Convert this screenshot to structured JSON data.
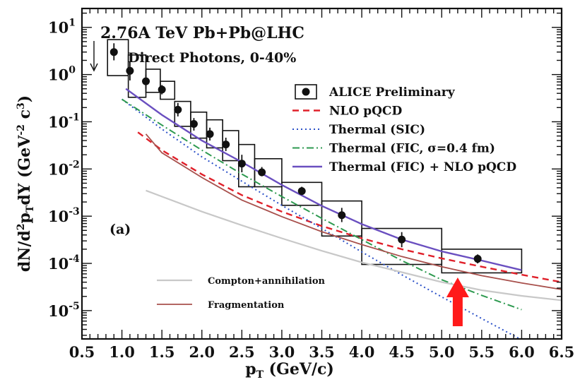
{
  "chart_data": {
    "type": "line",
    "title": "2.76A TeV Pb+Pb@LHC",
    "subtitle": "Direct Photons, 0-40%",
    "panel_label": "(a)",
    "xlabel": {
      "main": "p",
      "sub": "T",
      "rest": " (GeV/c)"
    },
    "ylabel": {
      "p1": "dN/d",
      "sup": "2",
      "p2": "p",
      "sub1": "T",
      "p3": "dY (GeV",
      "sup2": "-2",
      "p4": " c",
      "sup3": "3",
      "p5": ")"
    },
    "xlim": [
      0.5,
      6.5
    ],
    "ylim_log10": [
      -5.6,
      1.4
    ],
    "log_y": true,
    "x_ticks": [
      {
        "v": 0.5,
        "label": "0.5"
      },
      {
        "v": 1.0,
        "label": "1.0"
      },
      {
        "v": 1.5,
        "label": "1.5"
      },
      {
        "v": 2.0,
        "label": "2.0"
      },
      {
        "v": 2.5,
        "label": "2.5"
      },
      {
        "v": 3.0,
        "label": "3.0"
      },
      {
        "v": 3.5,
        "label": "3.5"
      },
      {
        "v": 4.0,
        "label": "4.0"
      },
      {
        "v": 4.5,
        "label": "4.5"
      },
      {
        "v": 5.0,
        "label": "5.0"
      },
      {
        "v": 5.5,
        "label": "5.5"
      },
      {
        "v": 6.0,
        "label": "6.0"
      },
      {
        "v": 6.5,
        "label": "6.5"
      }
    ],
    "y_ticks": [
      {
        "exp": 1,
        "base": "10",
        "sup": "1"
      },
      {
        "exp": 0,
        "base": "10",
        "sup": "0"
      },
      {
        "exp": -1,
        "base": "10",
        "sup": "-1"
      },
      {
        "exp": -2,
        "base": "10",
        "sup": "-2"
      },
      {
        "exp": -3,
        "base": "10",
        "sup": "-3"
      },
      {
        "exp": -4,
        "base": "10",
        "sup": "-4"
      },
      {
        "exp": -5,
        "base": "10",
        "sup": "-5"
      }
    ],
    "data_points": {
      "name": "ALICE Preliminary",
      "color": "#000000",
      "points": [
        {
          "x": 0.9,
          "y": 3.0,
          "stat": [
            2.0,
            4.6
          ],
          "box": [
            0.82,
            1.08,
            0.95,
            5.5
          ]
        },
        {
          "x": 1.1,
          "y": 1.2,
          "stat": [
            0.75,
            1.9
          ],
          "box": [
            1.08,
            1.3,
            0.33,
            2.6
          ]
        },
        {
          "x": 1.3,
          "y": 0.72,
          "stat": [
            0.5,
            1.0
          ],
          "box": [
            1.3,
            1.48,
            0.42,
            1.3
          ]
        },
        {
          "x": 1.5,
          "y": 0.48,
          "stat": [
            0.38,
            0.6
          ],
          "box": [
            1.48,
            1.66,
            0.3,
            0.72
          ]
        },
        {
          "x": 1.7,
          "y": 0.18,
          "stat": [
            0.13,
            0.25
          ],
          "box": [
            1.66,
            1.86,
            0.08,
            0.27
          ]
        },
        {
          "x": 1.9,
          "y": 0.09,
          "stat": [
            0.065,
            0.12
          ],
          "box": [
            1.86,
            2.06,
            0.045,
            0.16
          ]
        },
        {
          "x": 2.1,
          "y": 0.055,
          "stat": [
            0.04,
            0.075
          ],
          "box": [
            2.06,
            2.26,
            0.028,
            0.11
          ]
        },
        {
          "x": 2.3,
          "y": 0.033,
          "stat": [
            0.024,
            0.046
          ],
          "box": [
            2.26,
            2.46,
            0.015,
            0.065
          ]
        },
        {
          "x": 2.5,
          "y": 0.013,
          "stat": [
            0.0085,
            0.02
          ],
          "box": [
            2.46,
            2.66,
            0.0042,
            0.033
          ]
        },
        {
          "x": 2.75,
          "y": 0.0085,
          "stat": [
            0.007,
            0.011
          ],
          "box": [
            2.66,
            3.0,
            0.0042,
            0.0165
          ]
        },
        {
          "x": 3.25,
          "y": 0.0034,
          "stat": [
            0.0028,
            0.0042
          ],
          "box": [
            3.0,
            3.5,
            0.0017,
            0.0052
          ]
        },
        {
          "x": 3.75,
          "y": 0.00105,
          "stat": [
            0.00075,
            0.0015
          ],
          "box": [
            3.5,
            4.0,
            0.00038,
            0.0021
          ]
        },
        {
          "x": 4.5,
          "y": 0.00032,
          "stat": [
            0.00022,
            0.00046
          ],
          "box": [
            4.0,
            5.0,
            9.5e-05,
            0.00055
          ]
        },
        {
          "x": 5.45,
          "y": 0.000125,
          "stat": [
            0.0001,
            0.000155
          ],
          "box": [
            5.0,
            6.0,
            6.3e-05,
            0.0002
          ]
        }
      ]
    },
    "series": [
      {
        "name": "NLO pQCD",
        "color": "#e0202a",
        "dash": "9,6",
        "width": 2.4,
        "x": [
          1.2,
          1.5,
          2.0,
          2.5,
          3.0,
          3.5,
          4.0,
          4.5,
          5.0,
          5.5,
          6.0,
          6.5
        ],
        "y": [
          0.06,
          0.025,
          0.0077,
          0.0028,
          0.00125,
          0.00062,
          0.00034,
          0.0002,
          0.000128,
          8.5e-05,
          5.75e-05,
          4e-05
        ]
      },
      {
        "name": "Thermal (SIC)",
        "color": "#2a50c8",
        "dash": "2,4",
        "width": 2,
        "x": [
          1.0,
          1.5,
          2.0,
          2.5,
          3.0,
          3.5,
          4.0,
          4.5,
          5.0,
          5.5,
          6.0
        ],
        "y": [
          0.3,
          0.07,
          0.018,
          0.0055,
          0.0017,
          0.00055,
          0.000175,
          5.75e-05,
          1.95e-05,
          6.8e-06,
          2.4e-06
        ]
      },
      {
        "name": "Thermal (FIC, σ=0.4 fm)",
        "color": "#2e9a50",
        "dash": "10,4,2,4",
        "width": 2,
        "x": [
          1.0,
          1.5,
          2.0,
          2.5,
          3.0,
          3.5,
          4.0,
          4.5,
          5.0,
          5.5,
          6.0
        ],
        "y": [
          0.3,
          0.085,
          0.025,
          0.0078,
          0.0026,
          0.0009,
          0.00032,
          0.000115,
          4.5e-05,
          2.1e-05,
          1.05e-05
        ]
      },
      {
        "name": "Thermal (FIC) + NLO pQCD",
        "color": "#6a4fc0",
        "dash": "",
        "width": 2.4,
        "x": [
          1.05,
          1.5,
          2.0,
          2.5,
          3.0,
          3.5,
          4.0,
          4.5,
          5.0,
          5.5,
          6.0
        ],
        "y": [
          0.5,
          0.14,
          0.04,
          0.014,
          0.0046,
          0.00165,
          0.00068,
          0.00032,
          0.00018,
          0.000115,
          7.2e-05
        ]
      },
      {
        "name": "Compton+annihilation",
        "color": "#c8c8c8",
        "dash": "",
        "width": 2.2,
        "x": [
          1.3,
          1.5,
          2.0,
          2.5,
          3.0,
          3.5,
          4.0,
          4.5,
          5.0,
          5.5,
          6.0,
          6.5
        ],
        "y": [
          0.0035,
          0.0026,
          0.00125,
          0.00064,
          0.00034,
          0.000185,
          0.000105,
          6.5e-05,
          4e-05,
          2.7e-05,
          2.05e-05,
          1.65e-05
        ]
      },
      {
        "name": "Fragmentation",
        "color": "#a8504c",
        "dash": "",
        "width": 1.8,
        "x": [
          1.3,
          1.5,
          2.0,
          2.5,
          3.0,
          3.5,
          4.0,
          4.5,
          5.0,
          5.5,
          6.0,
          6.5
        ],
        "y": [
          0.055,
          0.022,
          0.0066,
          0.0022,
          0.00098,
          0.00047,
          0.00025,
          0.00014,
          8.5e-05,
          5.5e-05,
          3.85e-05,
          2.8e-05
        ]
      }
    ],
    "legend_upper": [
      {
        "label": "ALICE Preliminary",
        "kind": "marker"
      },
      {
        "label": "NLO pQCD",
        "kind": "line",
        "ref": 0
      },
      {
        "label": "Thermal (SIC)",
        "kind": "line",
        "ref": 1
      },
      {
        "label": "Thermal (FIC, σ=0.4 fm)",
        "kind": "line",
        "ref": 2
      },
      {
        "label": "Thermal (FIC) + NLO pQCD",
        "kind": "line",
        "ref": 3
      }
    ],
    "legend_lower": [
      {
        "label": "Compton+annihilation",
        "kind": "line",
        "ref": 4
      },
      {
        "label": "Fragmentation",
        "kind": "line",
        "ref": 5
      }
    ],
    "arrow_annotation": {
      "x": 5.2,
      "color": "#ff1a1a"
    }
  }
}
